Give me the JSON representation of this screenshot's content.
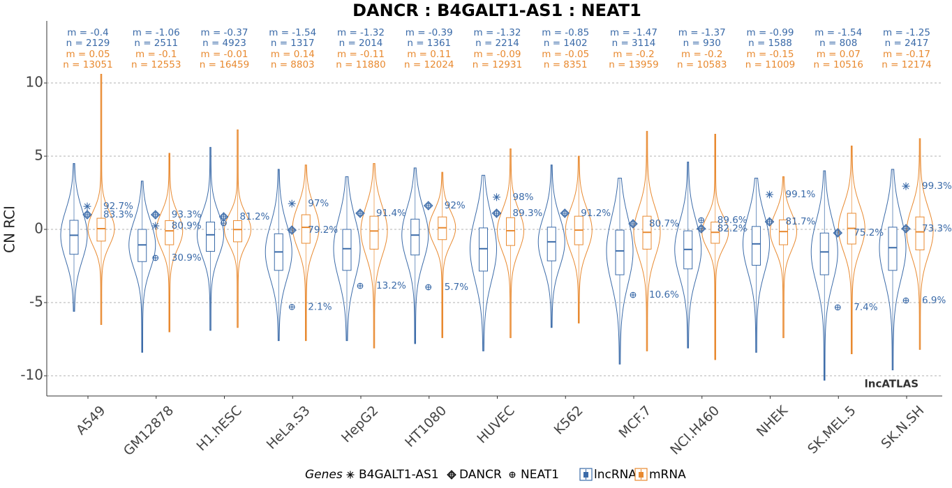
{
  "chart_data": {
    "type": "violin",
    "title": "DANCR : B4GALT1-AS1 : NEAT1",
    "ylabel": "CN RCI",
    "watermark": "lncATLAS",
    "legend_title": "Genes",
    "categories": [
      "A549",
      "GM12878",
      "H1.hESC",
      "HeLa.S3",
      "HepG2",
      "HT1080",
      "HUVEC",
      "K562",
      "MCF.7",
      "NCI.H460",
      "NHEK",
      "SK.MEL.5",
      "SK.N.SH"
    ],
    "ylim": [
      -11.38,
      14.24
    ],
    "yticks": [
      -10,
      -5,
      0,
      5,
      10
    ],
    "grid": true,
    "series": [
      {
        "name": "lncRNA",
        "color": "#3a6aa8",
        "values": [
          -0.4,
          -1.06,
          -0.37,
          -1.54,
          -1.32,
          -0.39,
          -1.32,
          -0.85,
          -1.47,
          -1.37,
          -0.99,
          -1.54,
          -1.25
        ],
        "value_labels": [
          "m = -0.4",
          "m = -1.06",
          "m = -0.37",
          "m = -1.54",
          "m = -1.32",
          "m = -0.39",
          "m = -1.32",
          "m = -0.85",
          "m = -1.47",
          "m = -1.37",
          "m = -0.99",
          "m = -1.54",
          "m = -1.25"
        ],
        "n_labels": [
          "n = 2129",
          "n = 2511",
          "n = 4923",
          "n = 1317",
          "n = 2014",
          "n = 1361",
          "n = 2214",
          "n = 1402",
          "n = 3114",
          "n = 930",
          "n = 1588",
          "n = 808",
          "n = 2417"
        ],
        "q3": [
          0.62,
          0,
          0.5,
          -0.3,
          0,
          0.7,
          0.1,
          0.15,
          -0.05,
          -0.1,
          0.2,
          -0.25,
          0.15
        ],
        "q1": [
          -1.7,
          -2.2,
          -1.5,
          -2.8,
          -2.8,
          -1.75,
          -2.85,
          -2.15,
          -3.1,
          -2.7,
          -2.45,
          -3.1,
          -2.8
        ],
        "max": [
          4.5,
          3.3,
          5.6,
          4.1,
          3.6,
          4.2,
          3.7,
          4.4,
          3.5,
          4.6,
          3.5,
          4,
          4.1
        ],
        "min": [
          -5.6,
          -8.4,
          -6.9,
          -7.6,
          -7.6,
          -7.8,
          -8.3,
          -6.7,
          -9.2,
          -8.1,
          -8.4,
          -10.3,
          -9.6
        ]
      },
      {
        "name": "mRNA",
        "color": "#e8892f",
        "values": [
          0.05,
          -0.1,
          -0.01,
          0.14,
          -0.11,
          0.11,
          -0.09,
          -0.05,
          -0.2,
          -0.2,
          -0.15,
          0.07,
          -0.17
        ],
        "value_labels": [
          "m = 0.05",
          "m = -0.1",
          "m = -0.01",
          "m = 0.14",
          "m = -0.11",
          "m = 0.11",
          "m = -0.09",
          "m = -0.05",
          "m = -0.2",
          "m = -0.2",
          "m = -0.15",
          "m = 0.07",
          "m = -0.17"
        ],
        "n_labels": [
          "n = 13051",
          "n = 12553",
          "n = 16459",
          "n = 8803",
          "n = 11880",
          "n = 12024",
          "n = 12931",
          "n = 8351",
          "n = 13959",
          "n = 10583",
          "n = 11009",
          "n = 10516",
          "n = 12174"
        ],
        "q3": [
          0.76,
          0.6,
          0.6,
          1.0,
          0.9,
          0.85,
          0.8,
          0.9,
          0.9,
          0.5,
          0.65,
          1.1,
          0.85
        ],
        "q1": [
          -0.8,
          -1.05,
          -0.85,
          -0.95,
          -1.35,
          -0.7,
          -1.1,
          -1.05,
          -1.35,
          -0.95,
          -1.05,
          -1,
          -1.4
        ],
        "max": [
          10.6,
          5.2,
          6.8,
          4.4,
          4.5,
          3.9,
          5.5,
          5,
          6.7,
          6.5,
          3.6,
          5.7,
          6.2
        ],
        "min": [
          -6.5,
          -7,
          -6.7,
          -7.6,
          -8.1,
          -7.4,
          -7.4,
          -6.4,
          -8.3,
          -8.9,
          -7.4,
          -8.5,
          -8.2
        ]
      }
    ],
    "genes": [
      {
        "name": "B4GALT1-AS1",
        "marker": "asterisk",
        "values": [
          1.57,
          0.24,
          null,
          1.76,
          null,
          null,
          2.2,
          null,
          null,
          null,
          2.38,
          null,
          2.95
        ],
        "value_labels": [
          "92.7%",
          "80.9%",
          null,
          "97%",
          null,
          null,
          "98%",
          null,
          null,
          null,
          "99.1%",
          null,
          "99.3%"
        ]
      },
      {
        "name": "DANCR",
        "marker": "diamond-plus",
        "values": [
          1.0,
          1.0,
          0.86,
          -0.05,
          1.1,
          1.62,
          1.1,
          1.1,
          0.38,
          0.05,
          0.52,
          -0.24,
          0.05
        ],
        "value_labels": [
          "83.3%",
          "93.3%",
          "81.2%",
          "79.2%",
          "91.4%",
          "92%",
          "89.3%",
          "91.2%",
          "80.7%",
          "82.2%",
          "81.7%",
          "75.2%",
          "73.3%"
        ]
      },
      {
        "name": "NEAT1",
        "marker": "circle-plus",
        "values": [
          null,
          -1.95,
          0.43,
          -5.3,
          -3.86,
          -3.95,
          null,
          null,
          -4.48,
          0.62,
          null,
          -5.33,
          -4.86
        ],
        "value_labels": [
          null,
          "30.9%",
          null,
          "2.1%",
          "13.2%",
          "5.7%",
          null,
          null,
          "10.6%",
          "89.6%",
          null,
          "7.4%",
          "6.9%"
        ]
      }
    ]
  }
}
